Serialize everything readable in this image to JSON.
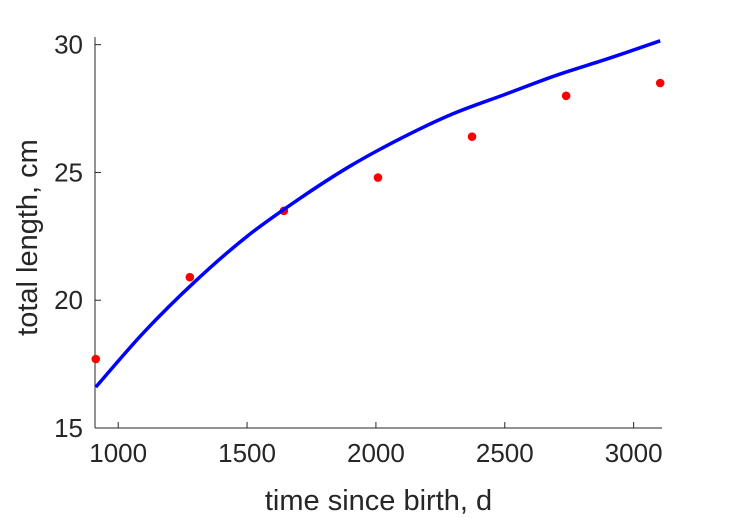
{
  "chart_data": {
    "type": "scatter",
    "title": "",
    "xlabel": "time since birth, d",
    "ylabel": "total length, cm",
    "xlim": [
      910,
      3110
    ],
    "ylim": [
      15,
      30.3
    ],
    "xticks": [
      1000,
      1500,
      2000,
      2500,
      3000
    ],
    "yticks": [
      15,
      20,
      25,
      30
    ],
    "xtick_labels": [
      "1000",
      "1500",
      "2000",
      "2500",
      "3000"
    ],
    "ytick_labels": [
      "15",
      "20",
      "25",
      "30"
    ],
    "grid": false,
    "legend": "none",
    "series": [
      {
        "kind": "points",
        "color": "#ff0000",
        "x": [
          913,
          1278,
          1643,
          2008,
          2373,
          2738,
          3103
        ],
        "y": [
          17.7,
          20.9,
          23.5,
          24.8,
          26.4,
          28.0,
          28.5
        ]
      },
      {
        "kind": "line",
        "color": "#0000ff",
        "x": [
          913,
          1100,
          1300,
          1500,
          1700,
          1900,
          2100,
          2300,
          2500,
          2700,
          2900,
          3103
        ],
        "y": [
          16.6,
          18.75,
          20.75,
          22.5,
          23.95,
          25.25,
          26.35,
          27.3,
          28.05,
          28.8,
          29.45,
          30.15
        ]
      }
    ]
  }
}
